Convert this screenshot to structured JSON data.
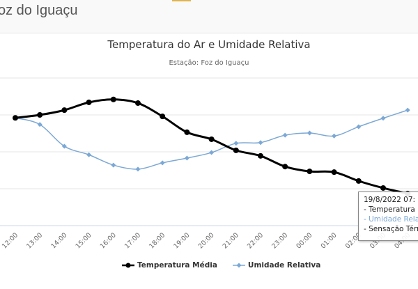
{
  "header": {
    "title": "oz do Iguaçu"
  },
  "chart_data": {
    "type": "line",
    "title": "Temperatura do Ar e Umidade Relativa",
    "subtitle": "Estação: Foz do Iguaçu",
    "categories": [
      "12:00",
      "13:00",
      "14:00",
      "15:00",
      "16:00",
      "17:00",
      "18:00",
      "19:00",
      "20:00",
      "21:00",
      "22:00",
      "23:00",
      "00:00",
      "01:00",
      "02:00",
      "03:00",
      "04:00"
    ],
    "ylim": [
      0,
      4
    ],
    "grid": true,
    "legend_placement": "bottom",
    "series": [
      {
        "name": "Temperatura Média",
        "color": "#000000",
        "values": [
          2.92,
          3.0,
          3.13,
          3.34,
          3.42,
          3.32,
          2.96,
          2.53,
          2.34,
          2.04,
          1.89,
          1.6,
          1.47,
          1.45,
          1.21,
          1.02,
          0.87
        ]
      },
      {
        "name": "Umidade Relativa",
        "color": "#7ca8d5",
        "values": [
          2.92,
          2.74,
          2.15,
          1.92,
          1.64,
          1.53,
          1.7,
          1.83,
          1.98,
          2.23,
          2.25,
          2.45,
          2.51,
          2.43,
          2.68,
          2.91,
          3.13
        ]
      }
    ]
  },
  "tooltip": {
    "date": "19/8/2022 07:",
    "lines": [
      "- Temperatura",
      "- Umidade Rela",
      "- Sensação Térm"
    ]
  }
}
